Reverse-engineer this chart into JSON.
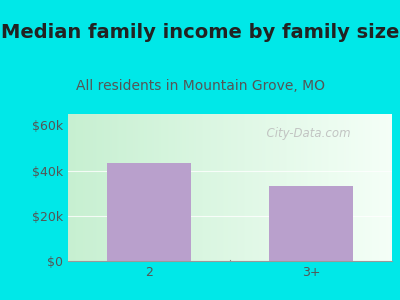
{
  "title": "Median family income by family size",
  "subtitle": "All residents in Mountain Grove, MO",
  "categories": [
    "2",
    "3+"
  ],
  "values": [
    43500,
    33000
  ],
  "bar_color": "#b9a0cc",
  "outer_bg_color": "#00e8e8",
  "yticks": [
    0,
    20000,
    40000,
    60000
  ],
  "ytick_labels": [
    "$0",
    "$20k",
    "$40k",
    "$60k"
  ],
  "ylim": [
    0,
    65000
  ],
  "title_fontsize": 14,
  "subtitle_fontsize": 10,
  "tick_label_fontsize": 9,
  "tick_color": "#555555",
  "title_color": "#222222",
  "subtitle_color": "#555555",
  "watermark_text": "  City-Data.com",
  "watermark_color": "#bbbbbb"
}
